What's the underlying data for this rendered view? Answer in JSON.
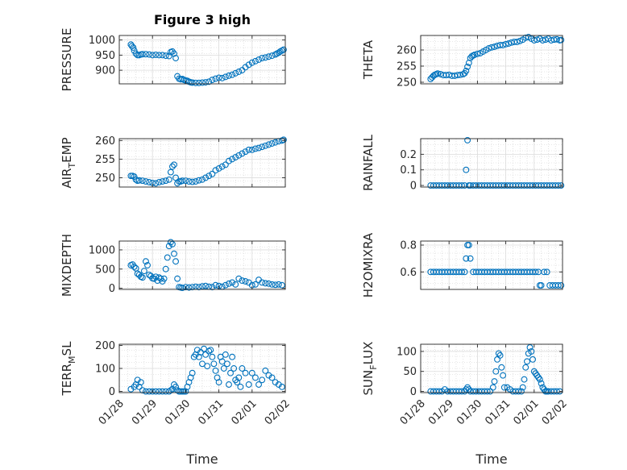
{
  "title": "Figure 3 high",
  "x_tick_labels": [
    "01/28",
    "01/29",
    "01/30",
    "01/31",
    "02/01",
    "02/02"
  ],
  "xlabel": "Time",
  "colors": {
    "marker": "#0072bd",
    "axis": "#262626",
    "grid": "#d0d0d0"
  },
  "chart_data": [
    {
      "type": "scatter",
      "name": "pressure",
      "ylabel": "PRESSURE",
      "ylabel_sub": "",
      "ylabel_tail": "",
      "ylim": [
        855,
        1015
      ],
      "yticks": [
        900,
        950,
        1000
      ],
      "xlim": [
        0,
        5
      ],
      "x": [
        0.35,
        0.38,
        0.42,
        0.45,
        0.5,
        0.55,
        0.6,
        0.65,
        0.7,
        0.8,
        0.9,
        1.0,
        1.1,
        1.2,
        1.3,
        1.4,
        1.5,
        1.55,
        1.6,
        1.65,
        1.7,
        1.75,
        1.8,
        1.85,
        1.9,
        1.95,
        2.0,
        2.05,
        2.1,
        2.15,
        2.2,
        2.3,
        2.4,
        2.5,
        2.6,
        2.7,
        2.8,
        2.9,
        3.0,
        3.1,
        3.2,
        3.3,
        3.4,
        3.5,
        3.6,
        3.7,
        3.8,
        3.9,
        4.0,
        4.1,
        4.2,
        4.3,
        4.4,
        4.5,
        4.6,
        4.7,
        4.75,
        4.8,
        4.85,
        4.9,
        4.95
      ],
      "y": [
        985,
        980,
        975,
        965,
        955,
        950,
        950,
        952,
        953,
        953,
        952,
        950,
        951,
        950,
        950,
        948,
        947,
        960,
        962,
        955,
        940,
        880,
        872,
        870,
        871,
        868,
        866,
        865,
        862,
        860,
        859,
        858,
        858,
        859,
        860,
        862,
        868,
        872,
        875,
        874,
        878,
        882,
        885,
        890,
        895,
        900,
        910,
        918,
        925,
        930,
        935,
        940,
        942,
        945,
        948,
        952,
        955,
        958,
        962,
        965,
        968
      ]
    },
    {
      "type": "scatter",
      "name": "theta",
      "ylabel": "THETA",
      "ylabel_sub": "",
      "ylabel_tail": "",
      "ylim": [
        249.5,
        264.5
      ],
      "yticks": [
        250,
        255,
        260
      ],
      "xlim": [
        0,
        5
      ],
      "x": [
        0.35,
        0.4,
        0.45,
        0.5,
        0.55,
        0.6,
        0.7,
        0.8,
        0.9,
        1.0,
        1.1,
        1.2,
        1.3,
        1.4,
        1.5,
        1.55,
        1.6,
        1.65,
        1.7,
        1.75,
        1.8,
        1.85,
        1.9,
        2.0,
        2.1,
        2.2,
        2.3,
        2.4,
        2.5,
        2.6,
        2.7,
        2.8,
        2.9,
        3.0,
        3.1,
        3.2,
        3.3,
        3.4,
        3.5,
        3.6,
        3.7,
        3.8,
        3.9,
        4.0,
        4.1,
        4.2,
        4.3,
        4.4,
        4.5,
        4.6,
        4.7,
        4.8,
        4.9,
        4.95
      ],
      "y": [
        251,
        251.5,
        252,
        252.3,
        252.5,
        252.7,
        252.5,
        252.2,
        252.2,
        252.3,
        252,
        252,
        252.2,
        252.3,
        252.5,
        252.8,
        253.5,
        254.8,
        256,
        257.5,
        258,
        258.3,
        258.5,
        258.8,
        259,
        259.5,
        260,
        260.5,
        260.8,
        261,
        261.3,
        261.5,
        261.5,
        261.8,
        262,
        262.3,
        262.5,
        262.5,
        262.8,
        263.2,
        263.8,
        264,
        263.5,
        263,
        263.2,
        263.5,
        263,
        263.2,
        263.5,
        263,
        263.2,
        263.3,
        263,
        263.1
      ]
    },
    {
      "type": "scatter",
      "name": "air_temp",
      "ylabel": "AIR",
      "ylabel_sub": "T",
      "ylabel_tail": "EMP",
      "ylim": [
        247.5,
        260.5
      ],
      "yticks": [
        250,
        255,
        260
      ],
      "xlim": [
        0,
        5
      ],
      "x": [
        0.35,
        0.4,
        0.45,
        0.5,
        0.55,
        0.6,
        0.7,
        0.8,
        0.9,
        1.0,
        1.1,
        1.2,
        1.3,
        1.4,
        1.5,
        1.55,
        1.6,
        1.65,
        1.7,
        1.75,
        1.8,
        1.85,
        1.9,
        2.0,
        2.1,
        2.2,
        2.3,
        2.4,
        2.5,
        2.6,
        2.7,
        2.8,
        2.9,
        3.0,
        3.1,
        3.2,
        3.3,
        3.4,
        3.5,
        3.6,
        3.7,
        3.8,
        3.9,
        4.0,
        4.1,
        4.2,
        4.3,
        4.4,
        4.5,
        4.6,
        4.7,
        4.8,
        4.9,
        4.95
      ],
      "y": [
        250.5,
        250.5,
        250.3,
        249.5,
        249.2,
        249.3,
        249.2,
        249.0,
        248.8,
        248.6,
        248.5,
        248.8,
        249.0,
        249.2,
        249.5,
        251.5,
        253,
        253.5,
        250,
        248.5,
        249,
        249,
        249.2,
        249.2,
        249.0,
        248.9,
        249.0,
        249.3,
        249.5,
        250,
        250.5,
        251,
        252,
        252.5,
        253,
        253.5,
        254.5,
        255,
        255.5,
        256,
        256.5,
        257,
        257.5,
        257.5,
        257.8,
        258,
        258.3,
        258.6,
        258.9,
        259.2,
        259.5,
        259.8,
        260,
        260.2
      ]
    },
    {
      "type": "scatter",
      "name": "rainfall",
      "ylabel": "RAINFALL",
      "ylabel_sub": "",
      "ylabel_tail": "",
      "ylim": [
        -0.01,
        0.3
      ],
      "yticks": [
        0,
        0.1,
        0.2
      ],
      "xlim": [
        0,
        5
      ],
      "x": [
        0.35,
        0.45,
        0.55,
        0.65,
        0.75,
        0.85,
        0.95,
        1.05,
        1.15,
        1.25,
        1.35,
        1.45,
        1.55,
        1.6,
        1.65,
        1.7,
        1.75,
        1.85,
        1.95,
        2.05,
        2.15,
        2.25,
        2.35,
        2.45,
        2.55,
        2.65,
        2.75,
        2.85,
        2.95,
        3.05,
        3.15,
        3.25,
        3.35,
        3.45,
        3.55,
        3.65,
        3.75,
        3.85,
        3.95,
        4.05,
        4.15,
        4.25,
        4.35,
        4.45,
        4.55,
        4.65,
        4.75,
        4.85,
        4.95
      ],
      "y": [
        0,
        0,
        0,
        0,
        0,
        0,
        0,
        0,
        0,
        0,
        0,
        0,
        0,
        0.1,
        0.29,
        0,
        0,
        0,
        0,
        0,
        0,
        0,
        0,
        0,
        0,
        0,
        0,
        0,
        0,
        0,
        0,
        0,
        0,
        0,
        0,
        0,
        0,
        0,
        0,
        0,
        0,
        0,
        0,
        0,
        0,
        0,
        0,
        0,
        0
      ]
    },
    {
      "type": "scatter",
      "name": "mixdepth",
      "ylabel": "MIXDEPTH",
      "ylabel_sub": "",
      "ylabel_tail": "",
      "ylim": [
        -30,
        1230
      ],
      "yticks": [
        0,
        500,
        1000
      ],
      "xlim": [
        0,
        5
      ],
      "x": [
        0.35,
        0.4,
        0.45,
        0.5,
        0.55,
        0.6,
        0.65,
        0.7,
        0.75,
        0.8,
        0.85,
        0.9,
        0.95,
        1.0,
        1.05,
        1.1,
        1.15,
        1.2,
        1.25,
        1.3,
        1.35,
        1.4,
        1.45,
        1.5,
        1.55,
        1.6,
        1.65,
        1.7,
        1.75,
        1.8,
        1.85,
        1.9,
        2.0,
        2.1,
        2.2,
        2.3,
        2.4,
        2.5,
        2.6,
        2.7,
        2.8,
        2.9,
        3.0,
        3.1,
        3.2,
        3.3,
        3.4,
        3.5,
        3.6,
        3.7,
        3.8,
        3.9,
        4.0,
        4.1,
        4.2,
        4.3,
        4.4,
        4.5,
        4.6,
        4.7,
        4.8,
        4.9
      ],
      "y": [
        600,
        620,
        560,
        520,
        380,
        350,
        300,
        280,
        450,
        700,
        600,
        350,
        320,
        260,
        250,
        300,
        200,
        280,
        250,
        180,
        250,
        500,
        800,
        1100,
        1200,
        1150,
        900,
        700,
        250,
        30,
        20,
        10,
        30,
        20,
        30,
        40,
        30,
        50,
        60,
        40,
        30,
        80,
        60,
        40,
        80,
        120,
        150,
        100,
        250,
        200,
        180,
        150,
        80,
        100,
        220,
        150,
        130,
        120,
        100,
        90,
        100,
        80
      ]
    },
    {
      "type": "scatter",
      "name": "h2omixra",
      "ylabel": "H2OMIXRA",
      "ylabel_sub": "",
      "ylabel_tail": "",
      "ylim": [
        0.47,
        0.83
      ],
      "yticks": [
        0.6,
        0.8
      ],
      "xlim": [
        0,
        5
      ],
      "x": [
        0.35,
        0.45,
        0.55,
        0.65,
        0.75,
        0.85,
        0.95,
        1.05,
        1.15,
        1.25,
        1.35,
        1.45,
        1.55,
        1.6,
        1.65,
        1.7,
        1.75,
        1.85,
        1.95,
        2.05,
        2.15,
        2.25,
        2.35,
        2.45,
        2.55,
        2.65,
        2.75,
        2.85,
        2.95,
        3.05,
        3.15,
        3.25,
        3.35,
        3.45,
        3.55,
        3.65,
        3.75,
        3.85,
        3.95,
        4.05,
        4.15,
        4.2,
        4.25,
        4.35,
        4.45,
        4.55,
        4.65,
        4.75,
        4.85,
        4.95
      ],
      "y": [
        0.6,
        0.6,
        0.6,
        0.6,
        0.6,
        0.6,
        0.6,
        0.6,
        0.6,
        0.6,
        0.6,
        0.6,
        0.6,
        0.7,
        0.8,
        0.8,
        0.7,
        0.6,
        0.6,
        0.6,
        0.6,
        0.6,
        0.6,
        0.6,
        0.6,
        0.6,
        0.6,
        0.6,
        0.6,
        0.6,
        0.6,
        0.6,
        0.6,
        0.6,
        0.6,
        0.6,
        0.6,
        0.6,
        0.6,
        0.6,
        0.6,
        0.5,
        0.5,
        0.6,
        0.6,
        0.5,
        0.5,
        0.5,
        0.5,
        0.5
      ]
    },
    {
      "type": "scatter",
      "name": "terr_msl",
      "ylabel": "TERR",
      "ylabel_sub": "M",
      "ylabel_tail": "SL",
      "ylim": [
        -5,
        205
      ],
      "yticks": [
        0,
        100,
        200
      ],
      "xlim": [
        0,
        5
      ],
      "x": [
        0.35,
        0.45,
        0.5,
        0.55,
        0.6,
        0.65,
        0.7,
        0.8,
        0.9,
        1.0,
        1.1,
        1.2,
        1.3,
        1.4,
        1.5,
        1.55,
        1.6,
        1.65,
        1.7,
        1.75,
        1.8,
        1.85,
        1.9,
        1.95,
        2.0,
        2.05,
        2.1,
        2.15,
        2.2,
        2.25,
        2.3,
        2.35,
        2.4,
        2.45,
        2.5,
        2.55,
        2.6,
        2.65,
        2.7,
        2.75,
        2.8,
        2.85,
        2.9,
        2.95,
        3.0,
        3.05,
        3.1,
        3.15,
        3.2,
        3.25,
        3.3,
        3.35,
        3.4,
        3.45,
        3.5,
        3.55,
        3.6,
        3.65,
        3.7,
        3.8,
        3.9,
        4.0,
        4.1,
        4.2,
        4.3,
        4.4,
        4.5,
        4.6,
        4.7,
        4.8,
        4.9
      ],
      "y": [
        10,
        20,
        30,
        50,
        20,
        40,
        5,
        0,
        0,
        0,
        0,
        0,
        0,
        0,
        0,
        5,
        10,
        30,
        20,
        5,
        0,
        0,
        0,
        0,
        0,
        20,
        40,
        60,
        80,
        150,
        160,
        180,
        150,
        170,
        120,
        185,
        160,
        110,
        175,
        180,
        150,
        120,
        90,
        60,
        40,
        150,
        130,
        100,
        160,
        120,
        30,
        80,
        150,
        100,
        50,
        40,
        60,
        20,
        100,
        80,
        30,
        80,
        60,
        30,
        50,
        90,
        70,
        60,
        40,
        30,
        20
      ]
    },
    {
      "type": "scatter",
      "name": "sun_flux",
      "ylabel": "SUN",
      "ylabel_sub": "F",
      "ylabel_tail": "LUX",
      "ylim": [
        -3,
        118
      ],
      "yticks": [
        0,
        50,
        100
      ],
      "xlim": [
        0,
        5
      ],
      "x": [
        0.35,
        0.45,
        0.55,
        0.65,
        0.75,
        0.85,
        0.95,
        1.05,
        1.15,
        1.25,
        1.35,
        1.45,
        1.55,
        1.6,
        1.65,
        1.7,
        1.75,
        1.85,
        1.95,
        2.05,
        2.15,
        2.25,
        2.35,
        2.45,
        2.55,
        2.6,
        2.65,
        2.7,
        2.75,
        2.8,
        2.85,
        2.9,
        2.95,
        3.05,
        3.15,
        3.25,
        3.35,
        3.45,
        3.55,
        3.6,
        3.65,
        3.7,
        3.75,
        3.8,
        3.85,
        3.9,
        3.95,
        4.0,
        4.05,
        4.1,
        4.15,
        4.2,
        4.25,
        4.3,
        4.35,
        4.4,
        4.45,
        4.5,
        4.6,
        4.7,
        4.8,
        4.9
      ],
      "y": [
        0,
        0,
        0,
        0,
        0,
        5,
        0,
        0,
        0,
        0,
        0,
        0,
        0,
        5,
        10,
        5,
        0,
        0,
        0,
        0,
        0,
        0,
        0,
        0,
        10,
        25,
        50,
        80,
        95,
        90,
        60,
        40,
        10,
        10,
        5,
        0,
        0,
        0,
        0,
        10,
        30,
        60,
        75,
        95,
        110,
        100,
        80,
        50,
        45,
        40,
        35,
        30,
        20,
        10,
        5,
        0,
        0,
        0,
        0,
        0,
        0,
        0
      ]
    }
  ]
}
